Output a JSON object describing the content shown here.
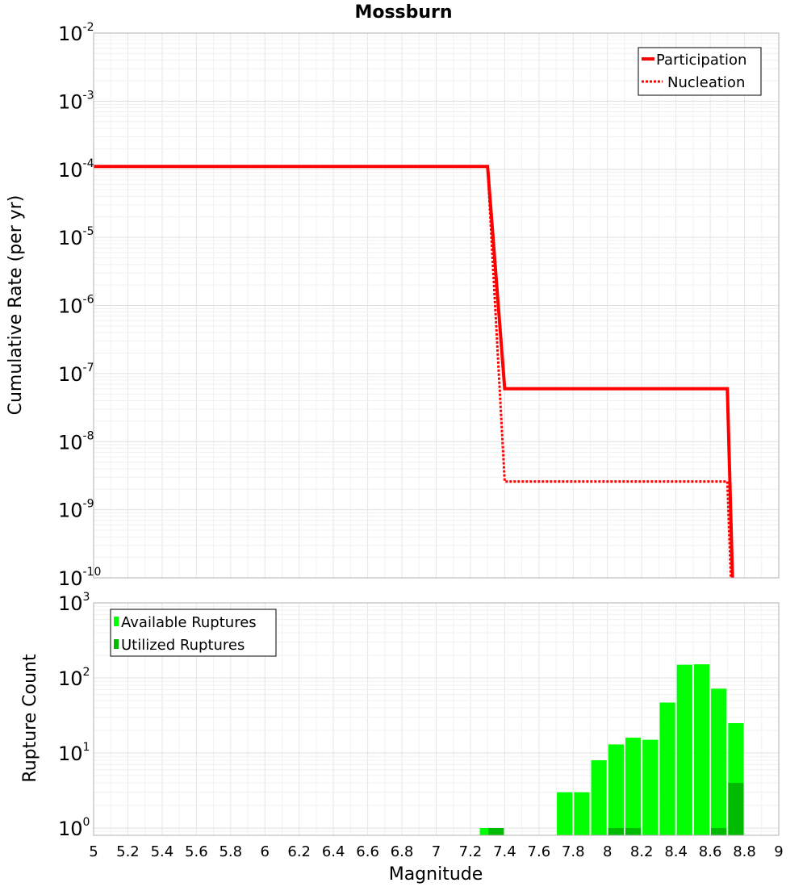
{
  "chart_data": {
    "title": "Mossburn",
    "xlabel": "Magnitude",
    "xlim": [
      5,
      9
    ],
    "x_ticks": [
      "5",
      "5.2",
      "5.4",
      "5.6",
      "5.8",
      "6",
      "6.2",
      "6.4",
      "6.6",
      "6.8",
      "7",
      "7.2",
      "7.4",
      "7.6",
      "7.8",
      "8",
      "8.2",
      "8.4",
      "8.6",
      "8.8",
      "9"
    ],
    "panels": [
      {
        "type": "line",
        "ylabel": "Cumulative Rate (per yr)",
        "y_scale": "log",
        "ylim": [
          1e-10,
          0.01
        ],
        "y_tick_exponents": [
          "-10",
          "-9",
          "-8",
          "-7",
          "-6",
          "-5",
          "-4",
          "-3",
          "-2"
        ],
        "grid": true,
        "legend_position": "top-right",
        "series": [
          {
            "name": "Participation",
            "style": "solid",
            "color": "#ff0000",
            "x": [
              5.0,
              7.3,
              7.4,
              8.7,
              8.73
            ],
            "y": [
              0.00011,
              0.00011,
              6e-08,
              6e-08,
              1e-10
            ]
          },
          {
            "name": "Nucleation",
            "style": "dotted",
            "color": "#ff0000",
            "x": [
              5.0,
              7.3,
              7.4,
              8.7,
              8.72
            ],
            "y": [
              0.00011,
              0.00011,
              2.6e-09,
              2.6e-09,
              1e-10
            ]
          }
        ]
      },
      {
        "type": "bar",
        "ylabel": "Rupture Count",
        "y_scale": "log",
        "ylim": [
          0.8,
          1000
        ],
        "y_tick_exponents": [
          "0",
          "1",
          "2",
          "3"
        ],
        "grid": true,
        "legend_position": "top-left",
        "bin_width": 0.1,
        "series": [
          {
            "name": "Available Ruptures",
            "color": "#00ff00",
            "x": [
              7.3,
              7.75,
              7.85,
              7.95,
              8.05,
              8.15,
              8.25,
              8.35,
              8.45,
              8.55,
              8.65,
              8.75
            ],
            "values": [
              1,
              3,
              3,
              8,
              13,
              16,
              15,
              47,
              150,
              152,
              72,
              25
            ]
          },
          {
            "name": "Utilized Ruptures",
            "color": "#00bb00",
            "x": [
              7.35,
              8.05,
              8.15,
              8.65,
              8.75
            ],
            "values": [
              1,
              1,
              1,
              1,
              4
            ]
          }
        ]
      }
    ]
  }
}
